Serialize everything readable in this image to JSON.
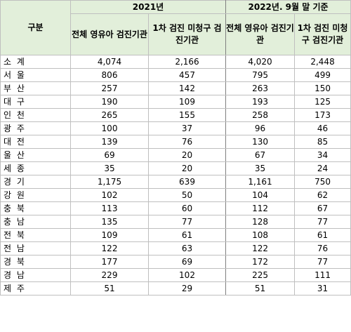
{
  "table": {
    "header": {
      "category": "구분",
      "period_2021": "2021년",
      "period_2022": "2022년. 9월 말 기준",
      "cols_2021": [
        "전체 영유아 검진기관",
        "1차 검진 미청구 검진기관"
      ],
      "cols_2022": [
        "전체 영유아 검진기관",
        "1차 검진 미청구 검진기관"
      ]
    },
    "rows": [
      {
        "region": "소 계",
        "total_2021": "4,074",
        "unclaimed_2021": "2,166",
        "total_2022": "4,020",
        "unclaimed_2022": "2,448"
      },
      {
        "region": "서 울",
        "total_2021": "806",
        "unclaimed_2021": "457",
        "total_2022": "795",
        "unclaimed_2022": "499"
      },
      {
        "region": "부 산",
        "total_2021": "257",
        "unclaimed_2021": "142",
        "total_2022": "263",
        "unclaimed_2022": "150"
      },
      {
        "region": "대 구",
        "total_2021": "190",
        "unclaimed_2021": "109",
        "total_2022": "193",
        "unclaimed_2022": "125"
      },
      {
        "region": "인 천",
        "total_2021": "265",
        "unclaimed_2021": "155",
        "total_2022": "258",
        "unclaimed_2022": "173"
      },
      {
        "region": "광 주",
        "total_2021": "100",
        "unclaimed_2021": "37",
        "total_2022": "96",
        "unclaimed_2022": "46"
      },
      {
        "region": "대 전",
        "total_2021": "139",
        "unclaimed_2021": "76",
        "total_2022": "130",
        "unclaimed_2022": "85"
      },
      {
        "region": "울 산",
        "total_2021": "69",
        "unclaimed_2021": "20",
        "total_2022": "67",
        "unclaimed_2022": "34"
      },
      {
        "region": "세 종",
        "total_2021": "35",
        "unclaimed_2021": "20",
        "total_2022": "35",
        "unclaimed_2022": "24"
      },
      {
        "region": "경 기",
        "total_2021": "1,175",
        "unclaimed_2021": "639",
        "total_2022": "1,161",
        "unclaimed_2022": "750"
      },
      {
        "region": "강 원",
        "total_2021": "102",
        "unclaimed_2021": "50",
        "total_2022": "104",
        "unclaimed_2022": "62"
      },
      {
        "region": "충 북",
        "total_2021": "113",
        "unclaimed_2021": "60",
        "total_2022": "112",
        "unclaimed_2022": "67"
      },
      {
        "region": "충 남",
        "total_2021": "135",
        "unclaimed_2021": "77",
        "total_2022": "128",
        "unclaimed_2022": "77"
      },
      {
        "region": "전 북",
        "total_2021": "109",
        "unclaimed_2021": "61",
        "total_2022": "108",
        "unclaimed_2022": "61"
      },
      {
        "region": "전 남",
        "total_2021": "122",
        "unclaimed_2021": "63",
        "total_2022": "122",
        "unclaimed_2022": "76"
      },
      {
        "region": "경 북",
        "total_2021": "177",
        "unclaimed_2021": "69",
        "total_2022": "172",
        "unclaimed_2022": "77"
      },
      {
        "region": "경 남",
        "total_2021": "229",
        "unclaimed_2021": "102",
        "total_2022": "225",
        "unclaimed_2022": "111"
      },
      {
        "region": "제 주",
        "total_2021": "51",
        "unclaimed_2021": "29",
        "total_2022": "51",
        "unclaimed_2022": "31"
      }
    ]
  }
}
